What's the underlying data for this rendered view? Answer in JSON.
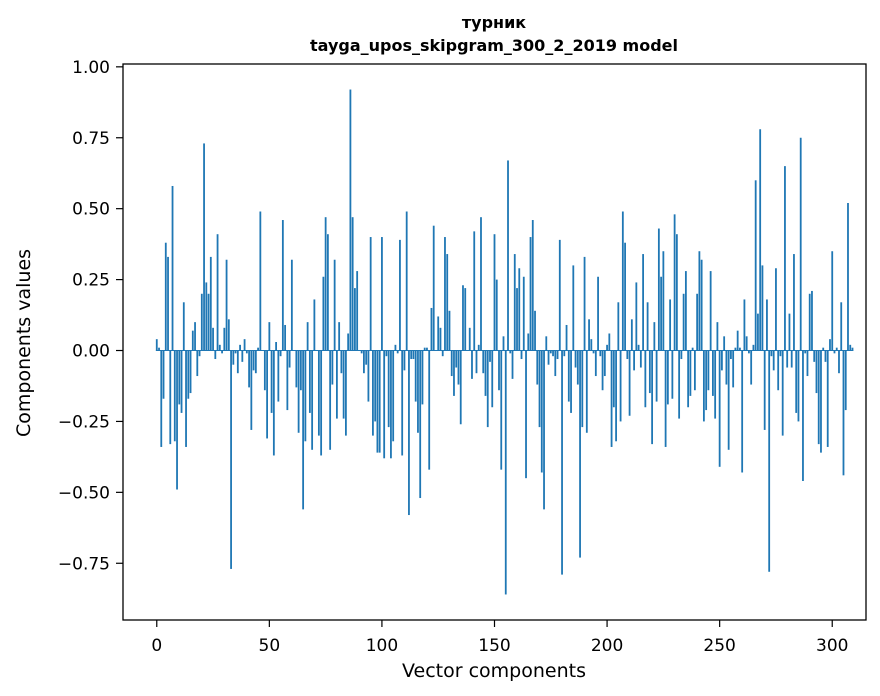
{
  "chart_data": {
    "type": "bar",
    "title": "турник",
    "subtitle": "tayga_upos_skipgram_300_2_2019 model",
    "xlabel": "Vector components",
    "ylabel": "Components values",
    "xlim": [
      -15,
      315
    ],
    "ylim": [
      -0.95,
      1.01
    ],
    "xticks": [
      0,
      50,
      100,
      150,
      200,
      250,
      300
    ],
    "yticks": [
      -0.75,
      -0.5,
      -0.25,
      0.0,
      0.25,
      0.5,
      0.75,
      1.0
    ],
    "xtick_labels": [
      "0",
      "50",
      "100",
      "150",
      "200",
      "250",
      "300"
    ],
    "ytick_labels": [
      "−0.75",
      "−0.50",
      "−0.25",
      "0.00",
      "0.25",
      "0.50",
      "0.75",
      "1.00"
    ],
    "bar_color": "#1f77b4",
    "grid": false,
    "values": [
      0.04,
      0.01,
      -0.34,
      -0.17,
      0.38,
      0.33,
      -0.33,
      0.58,
      -0.32,
      -0.49,
      -0.19,
      -0.22,
      0.17,
      -0.34,
      -0.17,
      -0.15,
      0.07,
      0.1,
      -0.09,
      -0.02,
      0.2,
      0.73,
      0.24,
      0.2,
      0.33,
      0.08,
      -0.03,
      0.41,
      0.02,
      -0.01,
      0.08,
      0.32,
      0.11,
      -0.77,
      -0.05,
      -0.01,
      -0.08,
      0.02,
      -0.04,
      0.04,
      -0.01,
      -0.13,
      -0.28,
      -0.07,
      -0.08,
      0.01,
      0.49,
      0.0,
      -0.14,
      -0.31,
      0.1,
      -0.22,
      -0.37,
      0.03,
      -0.18,
      -0.02,
      0.46,
      0.09,
      -0.21,
      -0.06,
      0.32,
      0.0,
      -0.13,
      -0.29,
      -0.14,
      -0.56,
      -0.32,
      0.1,
      -0.22,
      -0.35,
      0.18,
      0.0,
      -0.3,
      -0.37,
      0.26,
      0.47,
      0.41,
      -0.35,
      -0.12,
      0.32,
      -0.24,
      0.1,
      -0.08,
      -0.24,
      -0.3,
      0.06,
      0.92,
      0.47,
      0.22,
      0.28,
      0.0,
      -0.01,
      -0.08,
      -0.05,
      -0.18,
      0.4,
      -0.3,
      -0.25,
      -0.36,
      -0.36,
      0.4,
      -0.38,
      -0.02,
      -0.27,
      -0.38,
      -0.32,
      0.02,
      -0.01,
      0.39,
      -0.37,
      -0.07,
      0.49,
      -0.58,
      -0.03,
      -0.03,
      -0.18,
      -0.29,
      -0.52,
      -0.19,
      0.01,
      0.01,
      -0.42,
      0.15,
      0.44,
      0.0,
      0.12,
      0.08,
      -0.02,
      0.4,
      0.34,
      0.14,
      -0.09,
      -0.16,
      -0.06,
      -0.12,
      -0.26,
      0.23,
      0.22,
      0.0,
      0.08,
      -0.1,
      0.42,
      -0.08,
      0.02,
      0.47,
      -0.08,
      -0.16,
      -0.27,
      -0.04,
      -0.2,
      0.41,
      0.25,
      -0.14,
      -0.42,
      0.05,
      -0.86,
      0.67,
      -0.01,
      -0.1,
      0.34,
      0.22,
      0.29,
      -0.03,
      0.26,
      -0.45,
      0.06,
      0.4,
      0.46,
      0.14,
      -0.12,
      -0.27,
      -0.43,
      -0.56,
      0.05,
      -0.05,
      -0.01,
      -0.02,
      -0.09,
      -0.03,
      0.39,
      -0.79,
      -0.02,
      0.09,
      -0.18,
      -0.22,
      0.3,
      -0.06,
      -0.12,
      -0.73,
      -0.27,
      0.33,
      -0.29,
      0.11,
      0.04,
      -0.01,
      -0.09,
      0.26,
      -0.02,
      -0.14,
      -0.09,
      0.02,
      0.06,
      -0.34,
      -0.2,
      -0.32,
      0.17,
      -0.25,
      0.49,
      0.38,
      -0.03,
      -0.23,
      0.11,
      -0.07,
      0.24,
      0.02,
      -0.06,
      0.34,
      -0.2,
      0.17,
      -0.15,
      -0.33,
      0.1,
      -0.18,
      0.43,
      0.26,
      0.35,
      -0.34,
      -0.19,
      0.18,
      -0.17,
      0.48,
      0.41,
      -0.24,
      -0.03,
      0.2,
      0.28,
      -0.2,
      -0.16,
      0.01,
      -0.14,
      0.2,
      0.35,
      0.32,
      -0.25,
      -0.21,
      -0.14,
      0.28,
      -0.16,
      -0.24,
      0.1,
      -0.41,
      -0.07,
      0.05,
      -0.12,
      -0.35,
      -0.03,
      -0.13,
      0.01,
      0.07,
      0.01,
      -0.43,
      0.18,
      0.05,
      -0.01,
      -0.12,
      0.02,
      0.6,
      0.13,
      0.78,
      0.3,
      -0.28,
      0.18,
      -0.78,
      -0.02,
      -0.07,
      0.29,
      -0.14,
      -0.02,
      -0.3,
      0.65,
      -0.06,
      0.13,
      -0.06,
      0.34,
      -0.22,
      -0.25,
      0.75,
      -0.46,
      -0.01,
      -0.09,
      0.2,
      0.21,
      -0.04,
      -0.15,
      -0.33,
      -0.36,
      0.01,
      -0.04,
      -0.34,
      0.04,
      0.35,
      -0.01,
      0.01,
      -0.08,
      0.17,
      -0.44,
      -0.21,
      0.52,
      0.02,
      0.01
    ]
  }
}
